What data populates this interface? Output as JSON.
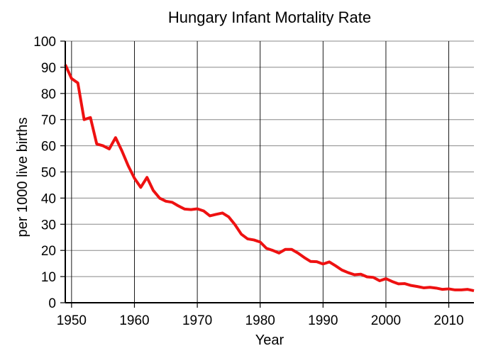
{
  "chart_data": {
    "type": "line",
    "title": "Hungary Infant Mortality Rate",
    "xlabel": "Year",
    "ylabel": "per 1000 live births",
    "xlim": [
      1949,
      2014
    ],
    "ylim": [
      0,
      100
    ],
    "grid": true,
    "x_ticks": [
      1950,
      1960,
      1970,
      1980,
      1990,
      2000,
      2010
    ],
    "y_ticks": [
      0,
      10,
      20,
      30,
      40,
      50,
      60,
      70,
      80,
      90,
      100
    ],
    "line_color": "#ee1111",
    "series": [
      {
        "x": [
          1949,
          1950,
          1951,
          1952,
          1953,
          1954,
          1955,
          1956,
          1957,
          1958,
          1959,
          1960,
          1961,
          1962,
          1963,
          1964,
          1965,
          1966,
          1967,
          1968,
          1969,
          1970,
          1971,
          1972,
          1973,
          1974,
          1975,
          1976,
          1977,
          1978,
          1979,
          1980,
          1981,
          1982,
          1983,
          1984,
          1985,
          1986,
          1987,
          1988,
          1989,
          1990,
          1991,
          1992,
          1993,
          1994,
          1995,
          1996,
          1997,
          1998,
          1999,
          2000,
          2001,
          2002,
          2003,
          2004,
          2005,
          2006,
          2007,
          2008,
          2009,
          2010,
          2011,
          2012,
          2013,
          2014
        ],
        "values": [
          91.0,
          85.7,
          84.0,
          70.0,
          70.8,
          60.7,
          60.0,
          58.8,
          63.1,
          58.1,
          52.4,
          47.6,
          44.1,
          47.9,
          42.9,
          40.0,
          38.8,
          38.4,
          37.0,
          35.8,
          35.6,
          35.9,
          35.1,
          33.2,
          33.8,
          34.3,
          32.8,
          29.8,
          26.2,
          24.4,
          24.0,
          23.2,
          20.8,
          20.0,
          19.0,
          20.4,
          20.4,
          19.0,
          17.3,
          15.8,
          15.7,
          14.8,
          15.6,
          14.1,
          12.5,
          11.5,
          10.7,
          10.9,
          9.9,
          9.7,
          8.4,
          9.2,
          8.1,
          7.2,
          7.3,
          6.6,
          6.2,
          5.7,
          5.9,
          5.6,
          5.1,
          5.3,
          4.9,
          4.9,
          5.1,
          4.6
        ]
      }
    ]
  }
}
